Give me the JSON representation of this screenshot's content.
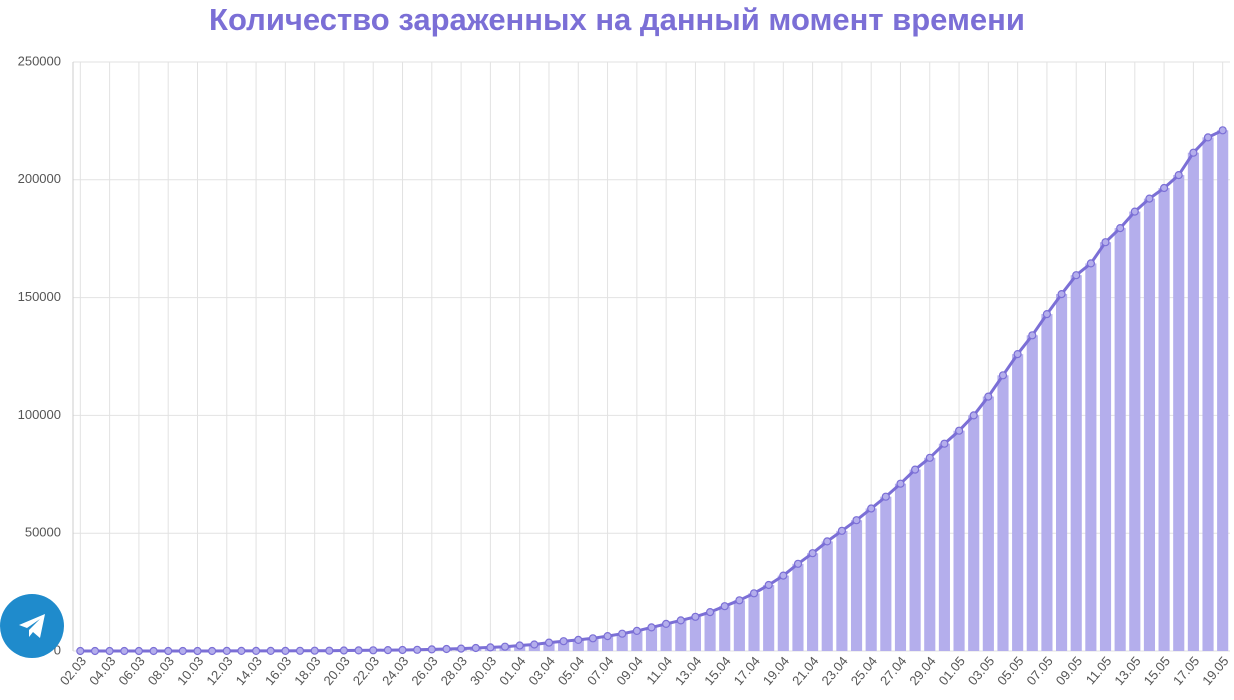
{
  "chart_data": {
    "type": "bar",
    "line": true,
    "title": "Количество зараженных на данный момент времени",
    "categories": [
      "02.03",
      null,
      "04.03",
      null,
      "06.03",
      null,
      "08.03",
      null,
      "10.03",
      null,
      "12.03",
      null,
      "14.03",
      null,
      "16.03",
      null,
      "18.03",
      null,
      "20.03",
      null,
      "22.03",
      null,
      "24.03",
      null,
      "26.03",
      null,
      "28.03",
      null,
      "30.03",
      null,
      "01.04",
      null,
      "03.04",
      null,
      "05.04",
      null,
      "07.04",
      null,
      "09.04",
      null,
      "11.04",
      null,
      "13.04",
      null,
      "15.04",
      null,
      "17.04",
      null,
      "19.04",
      null,
      "21.04",
      null,
      "23.04",
      null,
      "25.04",
      null,
      "27.04",
      null,
      "29.04",
      null,
      "01.05",
      null,
      "03.05",
      null,
      "05.05",
      null,
      "07.05",
      null,
      "09.05",
      null,
      "11.05",
      null,
      "13.05",
      null,
      "15.05",
      null,
      "17.05",
      null,
      "19.05"
    ],
    "values": [
      3,
      3,
      3,
      3,
      4,
      10,
      13,
      17,
      20,
      20,
      28,
      34,
      45,
      59,
      63,
      90,
      114,
      147,
      199,
      253,
      306,
      367,
      438,
      495,
      658,
      840,
      1036,
      1264,
      1534,
      1836,
      2337,
      2777,
      3548,
      4149,
      4731,
      5389,
      6343,
      7346,
      8529,
      10000,
      11500,
      13000,
      14500,
      16500,
      19000,
      21500,
      24500,
      28000,
      32000,
      37000,
      41500,
      46500,
      51000,
      55500,
      60500,
      65500,
      71000,
      77000,
      82000,
      88000,
      93500,
      100000,
      108000,
      117000,
      126000,
      134000,
      143000,
      151500,
      159500,
      164500,
      173500,
      179500,
      186500,
      192000,
      196500,
      202000,
      211500,
      218000,
      221000
    ],
    "color": "#b4aeec",
    "line_color": "#7b6fd6",
    "ylim": [
      0,
      250000
    ],
    "yticks": [
      0,
      50000,
      100000,
      150000,
      200000,
      250000
    ],
    "grid": true
  }
}
